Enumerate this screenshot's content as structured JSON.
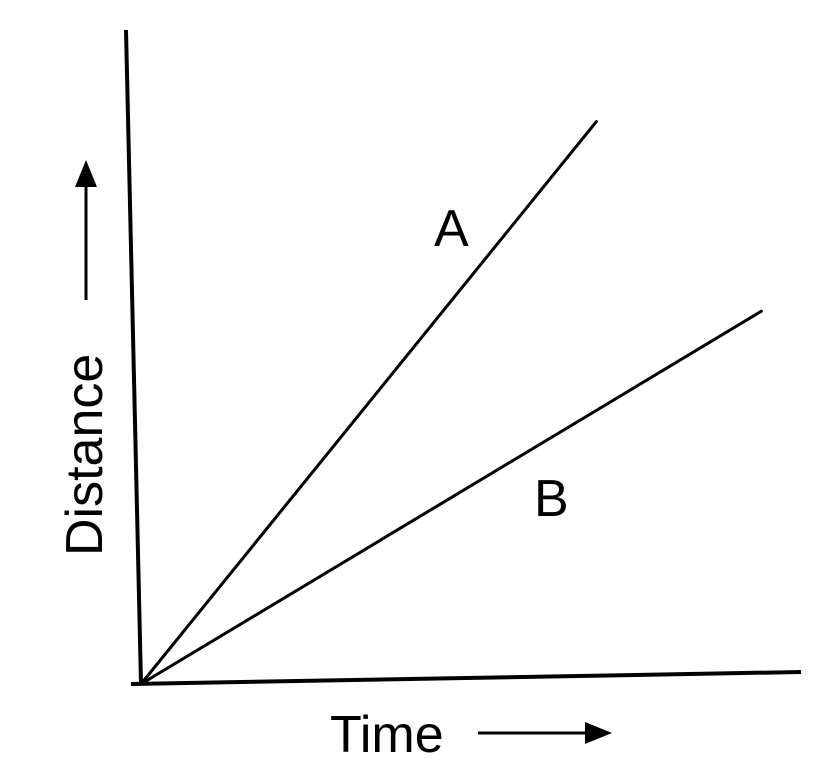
{
  "chart_data": {
    "type": "line",
    "title": "",
    "xlabel": "Time",
    "ylabel": "Distance",
    "xlim": [
      0,
      1
    ],
    "ylim": [
      0,
      1
    ],
    "grid": false,
    "legend": "inline",
    "series": [
      {
        "name": "A",
        "x": [
          0,
          0.69
        ],
        "y": [
          0,
          0.86
        ]
      },
      {
        "name": "B",
        "x": [
          0,
          0.94
        ],
        "y": [
          0,
          0.57
        ]
      }
    ]
  }
}
